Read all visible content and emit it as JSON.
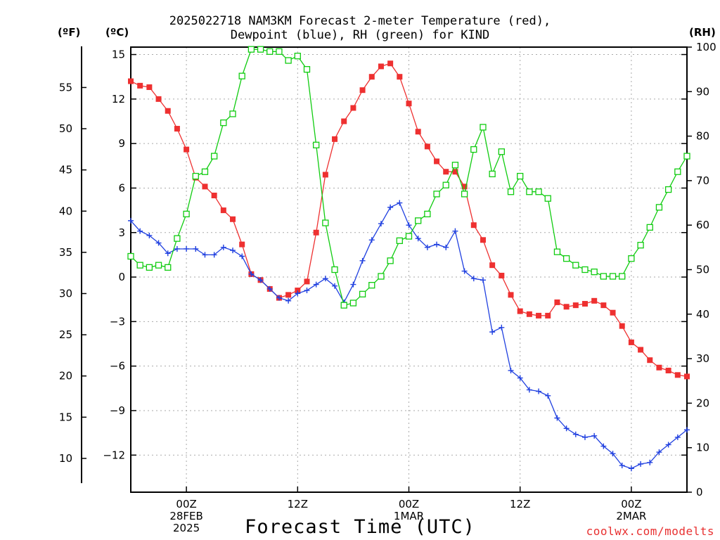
{
  "title_line1": "2025022718 NAM3KM Forecast 2-meter Temperature (red),",
  "title_line2": "Dewpoint (blue), RH (green) for KIND",
  "credit": "coolwx.com/modelts",
  "chart_data": {
    "type": "line",
    "title": "2025022718 NAM3KM Forecast 2-meter Temperature (red), Dewpoint (blue), RH (green) for KIND",
    "xlabel": "Forecast Time (UTC)",
    "x_unit": "forecast hour from 2025-02-27 18Z",
    "x_range": [
      0,
      60
    ],
    "x_ticks": [
      {
        "x": 6,
        "lines": [
          "00Z",
          "28FEB",
          "2025"
        ]
      },
      {
        "x": 18,
        "lines": [
          "12Z"
        ]
      },
      {
        "x": 30,
        "lines": [
          "00Z",
          "1MAR"
        ]
      },
      {
        "x": 42,
        "lines": [
          "12Z"
        ]
      },
      {
        "x": 54,
        "lines": [
          "00Z",
          "2MAR"
        ]
      }
    ],
    "axes": {
      "celsius": {
        "label": "(ºC)",
        "range": [
          -14.5,
          15.5
        ],
        "ticks": [
          15,
          12,
          9,
          6,
          3,
          0,
          -3,
          -6,
          -9,
          -12
        ],
        "tick_labels": [
          "15",
          "12",
          "9",
          "6",
          "3",
          "0",
          "−3",
          "−6",
          "−9",
          "−12"
        ]
      },
      "fahrenheit": {
        "label": "(ºF)",
        "ticks": [
          55,
          50,
          45,
          40,
          35,
          30,
          25,
          20,
          15,
          10
        ]
      },
      "rh": {
        "label": "(RH)",
        "range": [
          0,
          100
        ],
        "ticks": [
          100,
          90,
          80,
          70,
          60,
          50,
          40,
          30,
          20,
          10,
          0
        ]
      }
    },
    "grid": true,
    "series": [
      {
        "name": "Temperature",
        "axis": "celsius",
        "color": "#ee3030",
        "marker": "filled-square",
        "x": [
          0,
          1,
          2,
          3,
          4,
          5,
          6,
          7,
          8,
          9,
          10,
          11,
          12,
          13,
          14,
          15,
          16,
          17,
          18,
          19,
          20,
          21,
          22,
          23,
          24,
          25,
          26,
          27,
          28,
          29,
          30,
          31,
          32,
          33,
          34,
          35,
          36,
          37,
          38,
          39,
          40,
          41,
          42,
          43,
          44,
          45,
          46,
          47,
          48,
          49,
          50,
          51,
          52,
          53,
          54,
          55,
          56,
          57,
          58,
          59,
          60
        ],
        "values": [
          13.2,
          12.9,
          12.8,
          12.0,
          11.2,
          10.0,
          8.6,
          6.7,
          6.1,
          5.5,
          4.5,
          3.9,
          2.2,
          0.2,
          -0.2,
          -0.8,
          -1.4,
          -1.2,
          -0.9,
          -0.3,
          3.0,
          6.9,
          9.3,
          10.5,
          11.4,
          12.6,
          13.5,
          14.2,
          14.4,
          13.5,
          11.7,
          9.8,
          8.8,
          7.8,
          7.1,
          7.1,
          6.1,
          3.5,
          2.5,
          0.8,
          0.1,
          -1.2,
          -2.3,
          -2.5,
          -2.6,
          -2.6,
          -1.7,
          -2.0,
          -1.9,
          -1.8,
          -1.6,
          -1.9,
          -2.4,
          -3.3,
          -4.4,
          -4.9,
          -5.6,
          -6.1,
          -6.3,
          -6.6,
          -6.7
        ]
      },
      {
        "name": "Dewpoint",
        "axis": "celsius",
        "color": "#2040e0",
        "marker": "plus",
        "x": [
          0,
          1,
          2,
          3,
          4,
          5,
          6,
          7,
          8,
          9,
          10,
          11,
          12,
          13,
          14,
          15,
          16,
          17,
          18,
          19,
          20,
          21,
          22,
          23,
          24,
          25,
          26,
          27,
          28,
          29,
          30,
          31,
          32,
          33,
          34,
          35,
          36,
          37,
          38,
          39,
          40,
          41,
          42,
          43,
          44,
          45,
          46,
          47,
          48,
          49,
          50,
          51,
          52,
          53,
          54,
          55,
          56,
          57,
          58,
          59,
          60
        ],
        "values": [
          3.8,
          3.1,
          2.8,
          2.3,
          1.6,
          1.9,
          1.9,
          1.9,
          1.5,
          1.5,
          2.0,
          1.8,
          1.4,
          0.2,
          -0.2,
          -0.8,
          -1.4,
          -1.6,
          -1.1,
          -0.9,
          -0.5,
          -0.1,
          -0.6,
          -1.7,
          -0.5,
          1.1,
          2.5,
          3.6,
          4.7,
          5.0,
          3.5,
          2.6,
          2.0,
          2.2,
          2.0,
          3.1,
          0.4,
          -0.1,
          -0.2,
          -3.7,
          -3.4,
          -6.3,
          -6.8,
          -7.6,
          -7.7,
          -8.0,
          -9.5,
          -10.2,
          -10.6,
          -10.8,
          -10.7,
          -11.4,
          -11.9,
          -12.7,
          -12.9,
          -12.6,
          -12.5,
          -11.8,
          -11.3,
          -10.8,
          -10.3
        ]
      },
      {
        "name": "RH",
        "axis": "rh",
        "color": "#10cc10",
        "marker": "open-square",
        "x": [
          0,
          1,
          2,
          3,
          4,
          5,
          6,
          7,
          8,
          9,
          10,
          11,
          12,
          13,
          14,
          15,
          16,
          17,
          18,
          19,
          20,
          21,
          22,
          23,
          24,
          25,
          26,
          27,
          28,
          29,
          30,
          31,
          32,
          33,
          34,
          35,
          36,
          37,
          38,
          39,
          40,
          41,
          42,
          43,
          44,
          45,
          46,
          47,
          48,
          49,
          50,
          51,
          52,
          53,
          54,
          55,
          56,
          57,
          58,
          59,
          60
        ],
        "values": [
          53,
          51,
          50.5,
          51,
          50.5,
          57,
          62.5,
          71,
          72,
          75.5,
          83,
          85,
          93.5,
          99.5,
          99.5,
          99,
          99,
          97,
          98,
          95,
          78,
          60.5,
          50,
          42,
          42.5,
          44.5,
          46.5,
          48.5,
          52,
          56.5,
          57.5,
          61,
          62.5,
          67,
          69,
          73.5,
          67,
          77,
          82,
          71.5,
          76.5,
          67.5,
          71,
          67.5,
          67.5,
          66,
          54,
          52.5,
          51,
          50,
          49.5,
          48.5,
          48.5,
          48.5,
          52.5,
          55.5,
          59.5,
          64,
          68,
          72,
          75.5
        ]
      }
    ]
  }
}
